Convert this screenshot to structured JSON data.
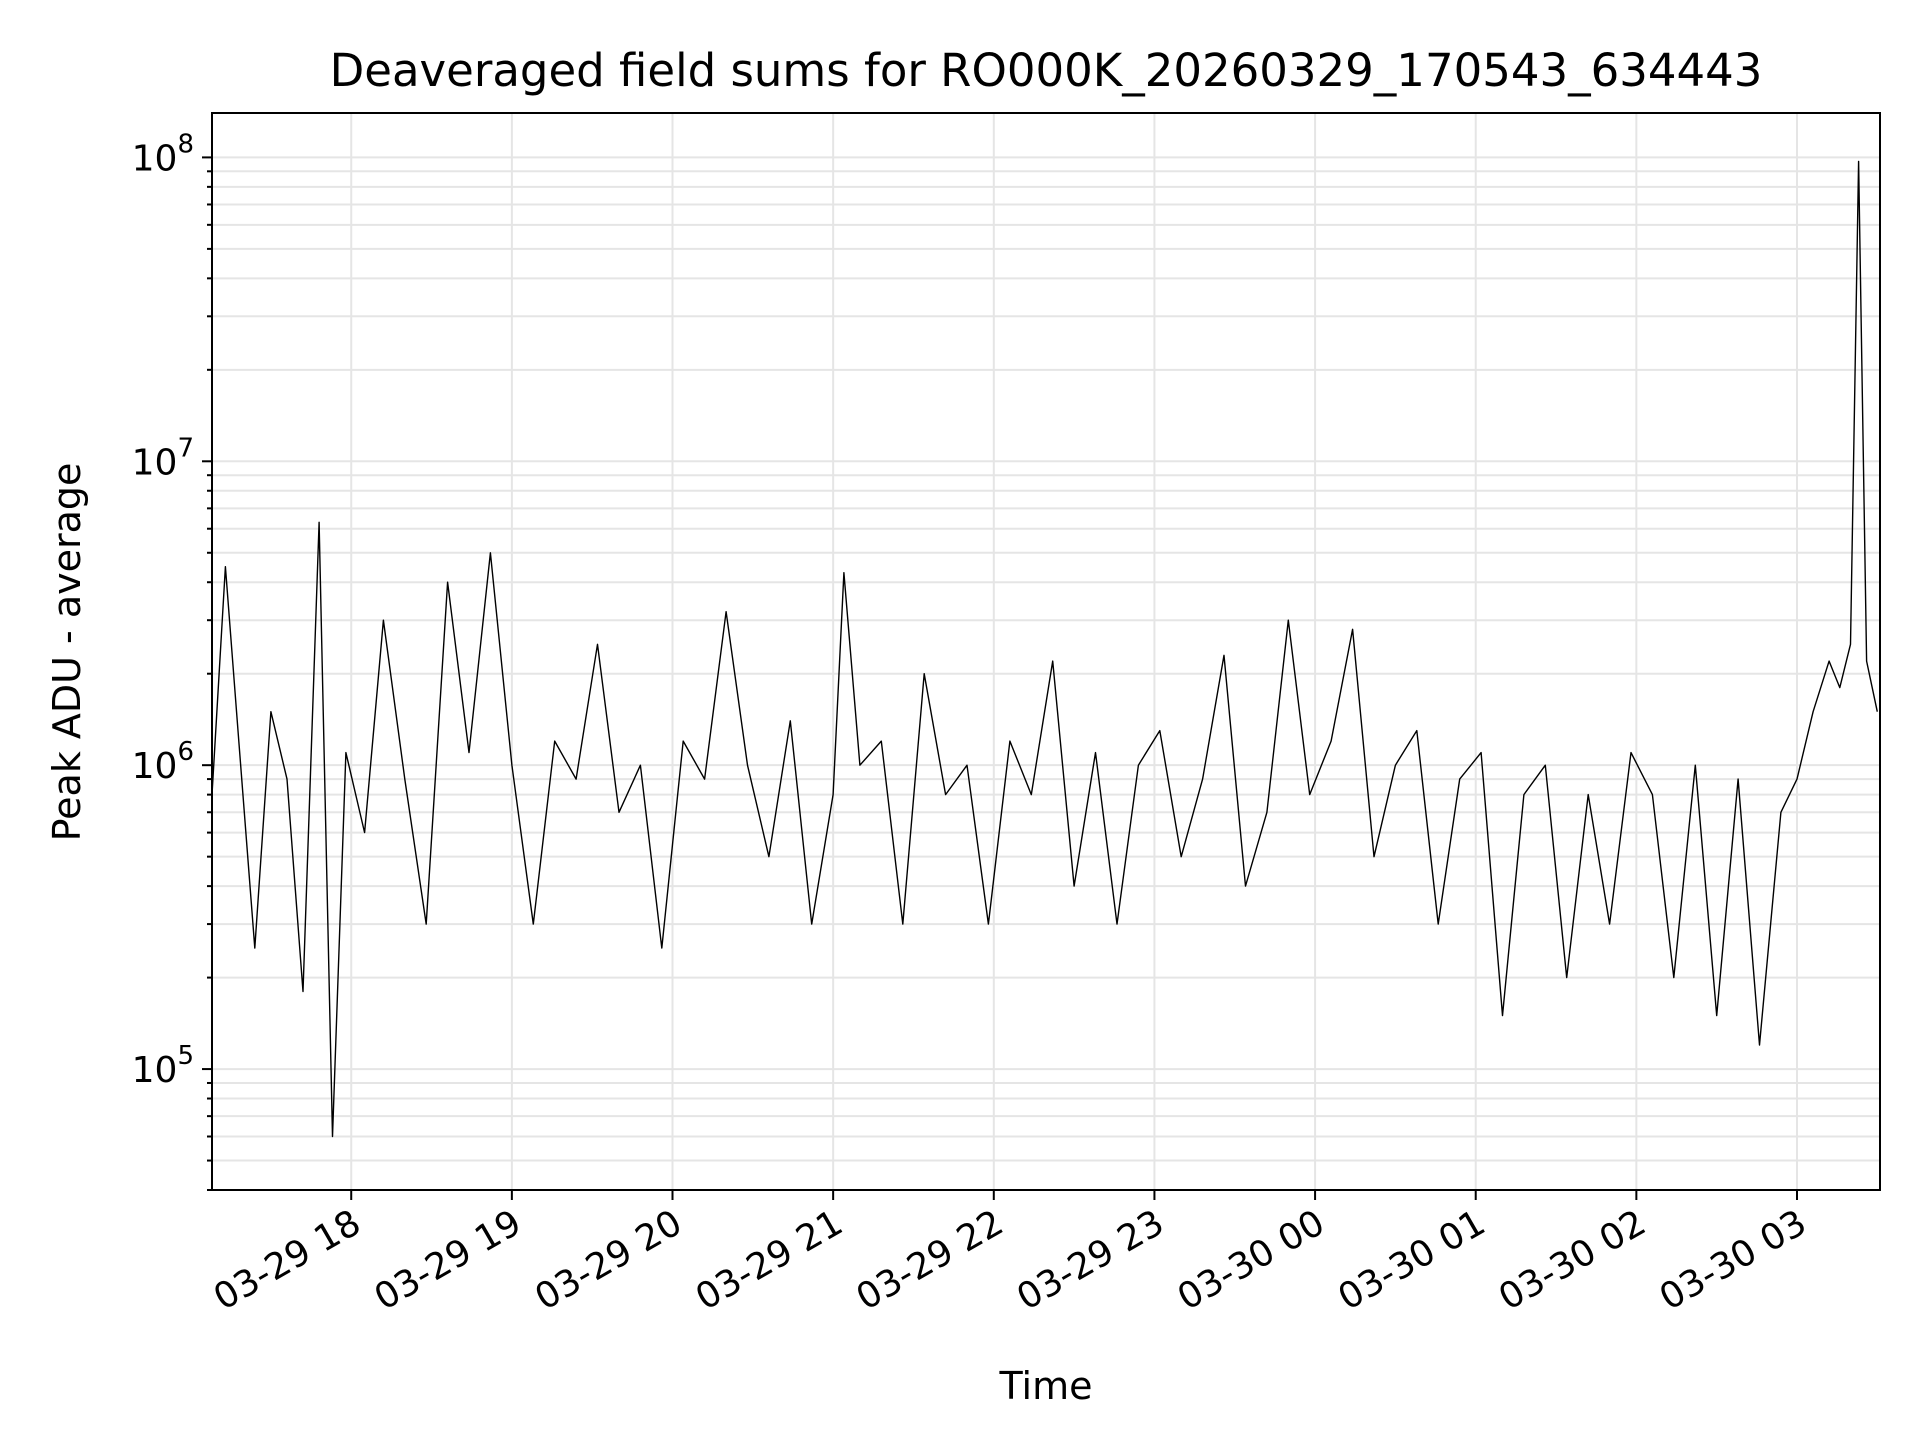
{
  "chart_data": {
    "type": "line",
    "title": "Deaveraged field sums for RO000K_20260329_170543_634443",
    "xlabel": "Time",
    "ylabel": "Peak ADU - average",
    "yscale": "log",
    "ylim": [
      40000,
      140000000
    ],
    "xlim": [
      "2026-03-29 17:08",
      "2026-03-30 03:31"
    ],
    "grid": true,
    "line_color": "#000000",
    "grid_color": "#e5e5e5",
    "x_ticks": [
      {
        "t": "2026-03-29 18:00",
        "label": "03-29 18"
      },
      {
        "t": "2026-03-29 19:00",
        "label": "03-29 19"
      },
      {
        "t": "2026-03-29 20:00",
        "label": "03-29 20"
      },
      {
        "t": "2026-03-29 21:00",
        "label": "03-29 21"
      },
      {
        "t": "2026-03-29 22:00",
        "label": "03-29 22"
      },
      {
        "t": "2026-03-29 23:00",
        "label": "03-29 23"
      },
      {
        "t": "2026-03-30 00:00",
        "label": "03-30 00"
      },
      {
        "t": "2026-03-30 01:00",
        "label": "03-30 01"
      },
      {
        "t": "2026-03-30 02:00",
        "label": "03-30 02"
      },
      {
        "t": "2026-03-30 03:00",
        "label": "03-30 03"
      }
    ],
    "y_ticks": [
      {
        "value": 100000,
        "base": "10",
        "exp": "5"
      },
      {
        "value": 1000000,
        "base": "10",
        "exp": "6"
      },
      {
        "value": 10000000,
        "base": "10",
        "exp": "7"
      },
      {
        "value": 100000000,
        "base": "10",
        "exp": "8"
      }
    ],
    "series": [
      {
        "x": [
          "2026-03-29 17:08",
          "2026-03-29 17:13",
          "2026-03-29 17:18",
          "2026-03-29 17:24",
          "2026-03-29 17:30",
          "2026-03-29 17:36",
          "2026-03-29 17:42",
          "2026-03-29 17:48",
          "2026-03-29 17:53",
          "2026-03-29 17:58",
          "2026-03-29 18:05",
          "2026-03-29 18:12",
          "2026-03-29 18:20",
          "2026-03-29 18:28",
          "2026-03-29 18:36",
          "2026-03-29 18:44",
          "2026-03-29 18:52",
          "2026-03-29 19:00",
          "2026-03-29 19:08",
          "2026-03-29 19:16",
          "2026-03-29 19:24",
          "2026-03-29 19:32",
          "2026-03-29 19:40",
          "2026-03-29 19:48",
          "2026-03-29 19:56",
          "2026-03-29 20:04",
          "2026-03-29 20:12",
          "2026-03-29 20:20",
          "2026-03-29 20:28",
          "2026-03-29 20:36",
          "2026-03-29 20:44",
          "2026-03-29 20:52",
          "2026-03-29 21:00",
          "2026-03-29 21:04",
          "2026-03-29 21:10",
          "2026-03-29 21:18",
          "2026-03-29 21:26",
          "2026-03-29 21:34",
          "2026-03-29 21:42",
          "2026-03-29 21:50",
          "2026-03-29 21:58",
          "2026-03-29 22:06",
          "2026-03-29 22:14",
          "2026-03-29 22:22",
          "2026-03-29 22:30",
          "2026-03-29 22:38",
          "2026-03-29 22:46",
          "2026-03-29 22:54",
          "2026-03-29 23:02",
          "2026-03-29 23:10",
          "2026-03-29 23:18",
          "2026-03-29 23:26",
          "2026-03-29 23:34",
          "2026-03-29 23:42",
          "2026-03-29 23:50",
          "2026-03-29 23:58",
          "2026-03-30 00:06",
          "2026-03-30 00:14",
          "2026-03-30 00:22",
          "2026-03-30 00:30",
          "2026-03-30 00:38",
          "2026-03-30 00:46",
          "2026-03-30 00:54",
          "2026-03-30 01:02",
          "2026-03-30 01:10",
          "2026-03-30 01:18",
          "2026-03-30 01:26",
          "2026-03-30 01:34",
          "2026-03-30 01:42",
          "2026-03-30 01:50",
          "2026-03-30 01:58",
          "2026-03-30 02:06",
          "2026-03-30 02:14",
          "2026-03-30 02:22",
          "2026-03-30 02:30",
          "2026-03-30 02:38",
          "2026-03-30 02:46",
          "2026-03-30 02:54",
          "2026-03-30 03:00",
          "2026-03-30 03:06",
          "2026-03-30 03:12",
          "2026-03-30 03:16",
          "2026-03-30 03:20",
          "2026-03-30 03:23",
          "2026-03-30 03:26",
          "2026-03-30 03:30"
        ],
        "y": [
          800000,
          4500000,
          1200000,
          250000,
          1500000,
          900000,
          180000,
          6300000,
          60000,
          1100000,
          600000,
          3000000,
          900000,
          300000,
          4000000,
          1100000,
          5000000,
          1000000,
          300000,
          1200000,
          900000,
          2500000,
          700000,
          1000000,
          250000,
          1200000,
          900000,
          3200000,
          1000000,
          500000,
          1400000,
          300000,
          800000,
          4300000,
          1000000,
          1200000,
          300000,
          2000000,
          800000,
          1000000,
          300000,
          1200000,
          800000,
          2200000,
          400000,
          1100000,
          300000,
          1000000,
          1300000,
          500000,
          900000,
          2300000,
          400000,
          700000,
          3000000,
          800000,
          1200000,
          2800000,
          500000,
          1000000,
          1300000,
          300000,
          900000,
          1100000,
          150000,
          800000,
          1000000,
          200000,
          800000,
          300000,
          1100000,
          800000,
          200000,
          1000000,
          150000,
          900000,
          120000,
          700000,
          900000,
          1500000,
          2200000,
          1800000,
          2500000,
          97000000,
          2200000,
          1500000
        ]
      }
    ]
  }
}
